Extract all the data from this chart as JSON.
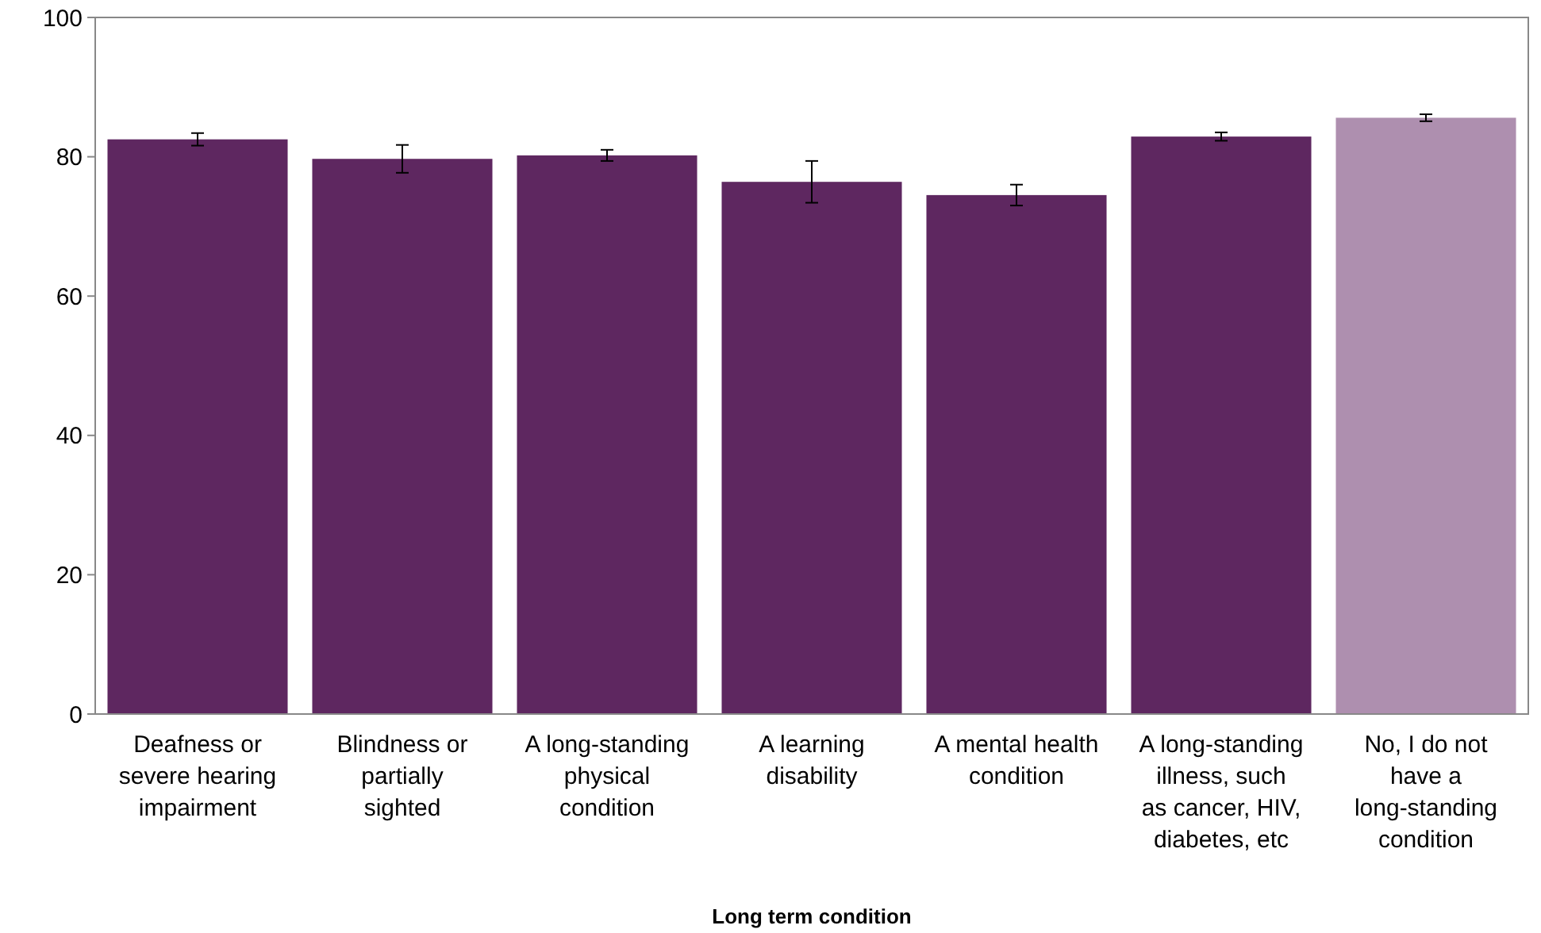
{
  "chart_data": {
    "type": "bar",
    "xlabel": "Long term condition",
    "categories": [
      "Deafness or severe hearing impairment",
      "Blindness or partially sighted",
      "A long-standing physical condition",
      "A learning disability",
      "A mental health condition",
      "A long-standing illness, such as cancer, HIV, diabetes, etc",
      "No, I do not have a long-standing condition"
    ],
    "values": [
      82.5,
      79.7,
      80.2,
      76.4,
      74.5,
      82.9,
      85.6
    ],
    "errors": [
      0.9,
      2,
      0.8,
      3,
      1.5,
      0.6,
      0.5
    ],
    "colors": [
      "#5e2760",
      "#5e2760",
      "#5e2760",
      "#5e2760",
      "#5e2760",
      "#5e2760",
      "#ae8faf"
    ],
    "ylim": [
      0,
      100
    ],
    "yticks": [
      0,
      20,
      40,
      60,
      80,
      100
    ],
    "grid": false
  }
}
